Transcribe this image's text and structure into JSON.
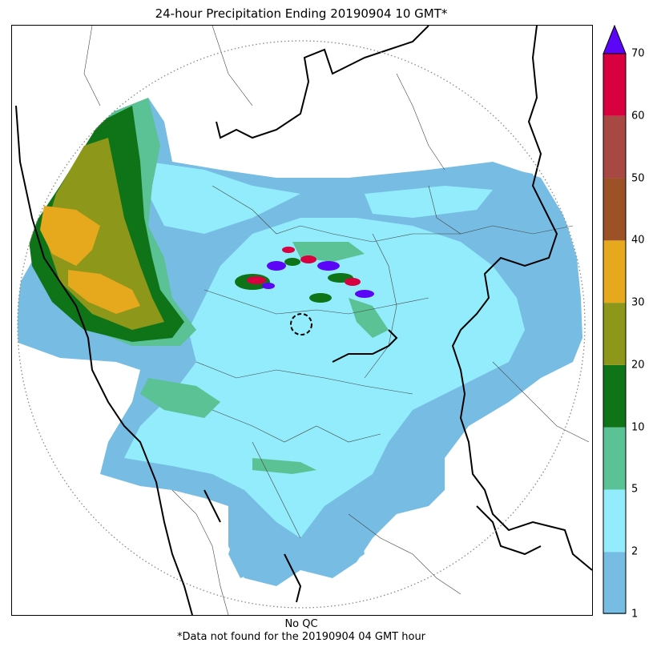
{
  "title": "24-hour Precipitation Ending 20190904 10 GMT*",
  "footer": {
    "qc_note": "No QC",
    "missing_note": "*Data not found for the 20190904 04 GMT hour"
  },
  "colorbar": {
    "levels": [
      "1",
      "2",
      "5",
      "10",
      "20",
      "30",
      "40",
      "50",
      "60",
      "70"
    ],
    "colors": [
      "#76bce3",
      "#92ecfb",
      "#5bc296",
      "#0f7418",
      "#8d9719",
      "#e6a81c",
      "#9c5127",
      "#a74843",
      "#d8003f"
    ],
    "extend_color": "#5b06f6"
  },
  "palette": {
    "light_blue": "#76bce3",
    "cyan": "#92ecfb",
    "mint": "#5bc296",
    "dark_green": "#0f7418",
    "olive": "#8d9719",
    "orange": "#e6a81c",
    "brown": "#9c5127",
    "red": "#d8003f",
    "violet": "#5b06f6"
  }
}
